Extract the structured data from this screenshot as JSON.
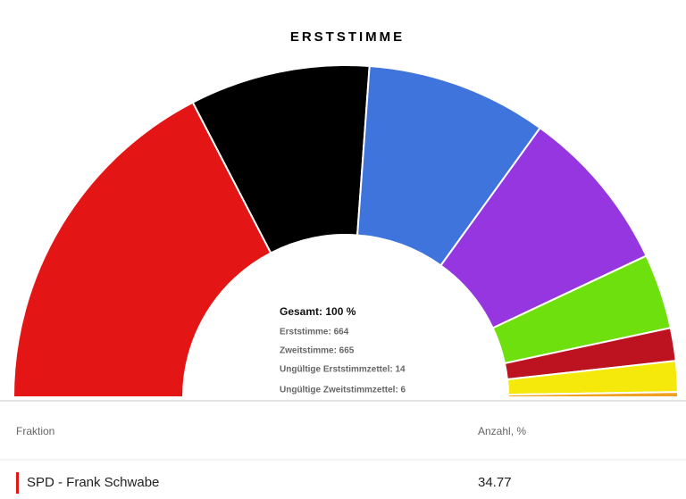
{
  "chart_data": {
    "type": "pie",
    "title": "ERSTSTIMME",
    "values": [
      34.77,
      17.5,
      17.6,
      16.1,
      7.3,
      3.2,
      3.0,
      0.5
    ],
    "colors": [
      "#e31515",
      "#000000",
      "#3f74dc",
      "#9536e0",
      "#6ee00e",
      "#bd1320",
      "#f5e90c",
      "#f0a020"
    ],
    "center_labels": [
      "Gesamt: 100 %",
      "Erststimme: 664",
      "Zweitstimme: 665",
      "Ungültige Erststimmzettel: 14",
      "Ungültige Zweitstimmzettel: 6"
    ]
  },
  "table": {
    "headers": [
      "Fraktion",
      "Anzahl, %"
    ],
    "rows": [
      [
        "SPD - Frank Schwabe",
        34.77
      ]
    ]
  }
}
